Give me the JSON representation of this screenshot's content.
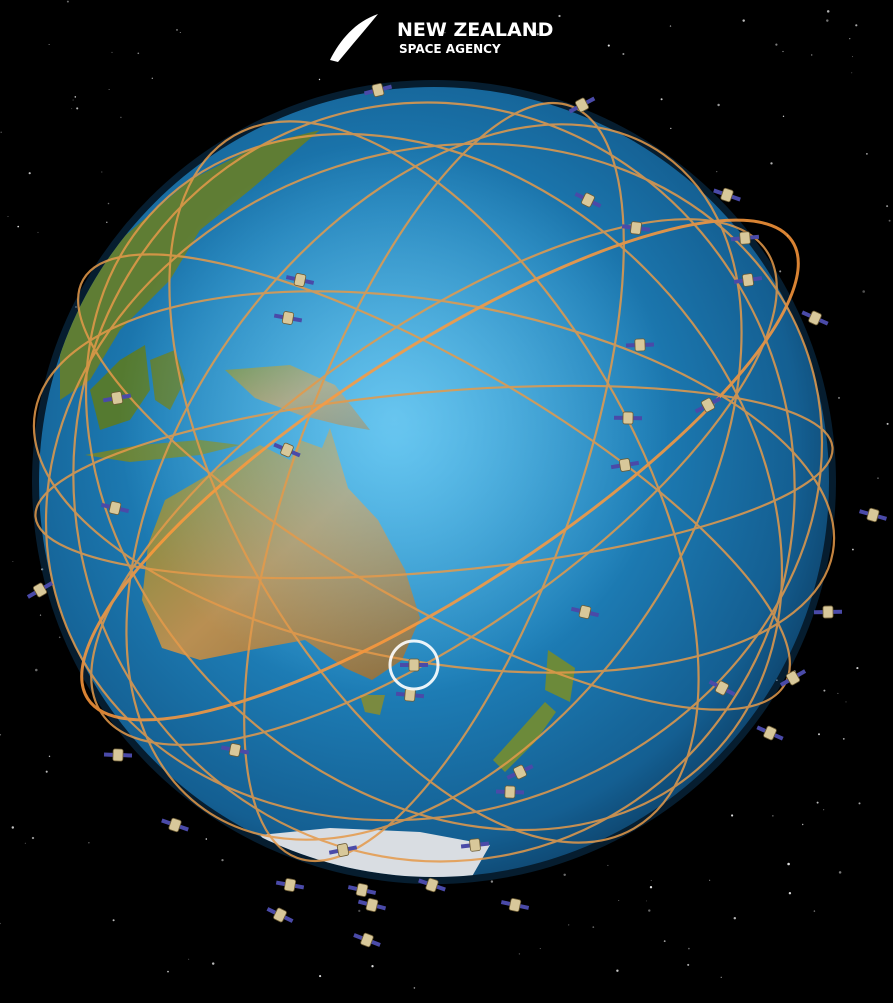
{
  "logo": {
    "line1": "NEW ZEALAND",
    "line2": "SPACE AGENCY"
  }
}
